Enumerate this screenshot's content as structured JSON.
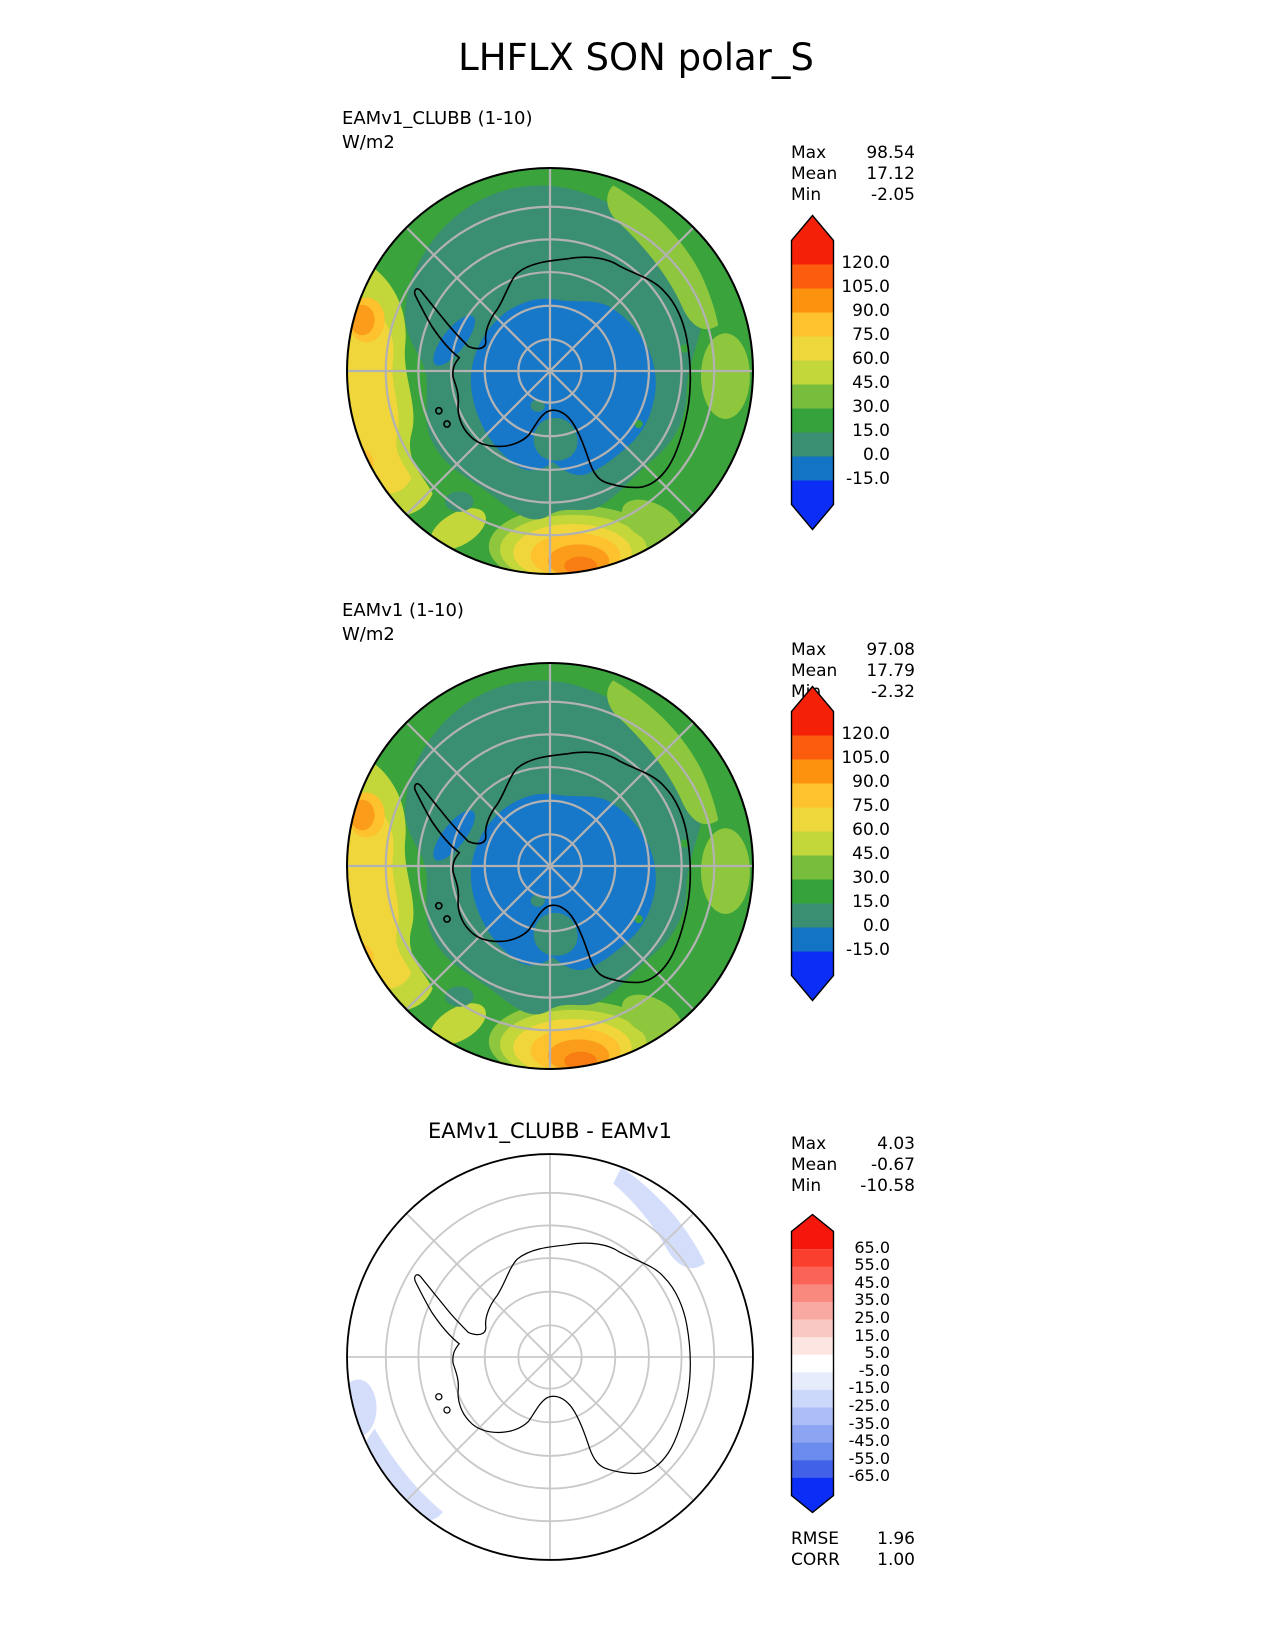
{
  "title": "LHFLX SON polar_S",
  "panels": [
    {
      "label_line1": "EAMv1_CLUBB (1-10)",
      "label_line2": "W/m2",
      "stats": [
        {
          "label": "Max",
          "value": "98.54"
        },
        {
          "label": "Mean",
          "value": "17.12"
        },
        {
          "label": "Min",
          "value": "-2.05"
        }
      ],
      "colorbar": {
        "labels": [
          "120.0",
          "105.0",
          "90.0",
          "75.0",
          "60.0",
          "45.0",
          "30.0",
          "15.0",
          "0.0",
          "-15.0"
        ],
        "colors": [
          "#f52008",
          "#fb5c0d",
          "#fd920e",
          "#fdc22e",
          "#eed73b",
          "#c3d63a",
          "#79bd3c",
          "#35a23c",
          "#3a8e71",
          "#1373c4",
          "#0b2df5"
        ]
      }
    },
    {
      "label_line1": "EAMv1 (1-10)",
      "label_line2": "W/m2",
      "stats": [
        {
          "label": "Max",
          "value": "97.08"
        },
        {
          "label": "Mean",
          "value": "17.79"
        },
        {
          "label": "Min",
          "value": "-2.32"
        }
      ],
      "colorbar": {
        "labels": [
          "120.0",
          "105.0",
          "90.0",
          "75.0",
          "60.0",
          "45.0",
          "30.0",
          "15.0",
          "0.0",
          "-15.0"
        ],
        "colors": [
          "#f52008",
          "#fb5c0d",
          "#fd920e",
          "#fdc22e",
          "#eed73b",
          "#c3d63a",
          "#79bd3c",
          "#35a23c",
          "#3a8e71",
          "#1373c4",
          "#0b2df5"
        ]
      }
    },
    {
      "title": "EAMv1_CLUBB - EAMv1",
      "stats": [
        {
          "label": "Max",
          "value": "4.03"
        },
        {
          "label": "Mean",
          "value": "-0.67"
        },
        {
          "label": "Min",
          "value": "-10.58"
        }
      ],
      "colorbar": {
        "labels": [
          "65.0",
          "55.0",
          "45.0",
          "35.0",
          "25.0",
          "15.0",
          "5.0",
          "-5.0",
          "-15.0",
          "-25.0",
          "-35.0",
          "-45.0",
          "-55.0",
          "-65.0"
        ],
        "colors": [
          "#f5160c",
          "#fa3f2e",
          "#fa6355",
          "#f9887e",
          "#f8aaa2",
          "#fac8c3",
          "#fde5e2",
          "#ffffff",
          "#e7ecfc",
          "#ccd8f9",
          "#acbef6",
          "#8ca4f2",
          "#6b8bee",
          "#4061e8",
          "#0b2df5"
        ]
      },
      "metrics": [
        {
          "label": "RMSE",
          "value": "1.96"
        },
        {
          "label": "CORR",
          "value": "1.00"
        }
      ]
    }
  ],
  "map_colors": {
    "green": "#3aa33c",
    "teal": "#3a8e71",
    "blue": "#1777c9",
    "lightgreen": "#8ec63e",
    "yellowgreen": "#c3d63a",
    "yellow": "#f0d63b",
    "amber": "#fdc22e",
    "orange": "#fb9d1b",
    "deeporange": "#f87d12",
    "diffblue": "#d4defb",
    "graticule": "#b2b2b2",
    "graticule_light": "#c9c9c9",
    "coast": "#000000"
  },
  "chart_data": {
    "type": "heatmap",
    "subtype": "polar_stereographic_filled_contour_maps",
    "figure_title": "LHFLX SON polar_S",
    "variable": "LHFLX",
    "season": "SON",
    "region": "polar_S",
    "units": "W/m2",
    "legend_position": "right-of-each-panel",
    "panels": [
      {
        "name": "EAMv1_CLUBB (1-10)",
        "stats": {
          "max": 98.54,
          "mean": 17.12,
          "min": -2.05
        },
        "contour_levels": [
          -15.0,
          0.0,
          15.0,
          30.0,
          45.0,
          60.0,
          75.0,
          90.0,
          105.0,
          120.0
        ]
      },
      {
        "name": "EAMv1 (1-10)",
        "stats": {
          "max": 97.08,
          "mean": 17.79,
          "min": -2.32
        },
        "contour_levels": [
          -15.0,
          0.0,
          15.0,
          30.0,
          45.0,
          60.0,
          75.0,
          90.0,
          105.0,
          120.0
        ]
      },
      {
        "name": "EAMv1_CLUBB - EAMv1",
        "stats": {
          "max": 4.03,
          "mean": -0.67,
          "min": -10.58
        },
        "metrics": {
          "rmse": 1.96,
          "corr": 1.0
        },
        "contour_levels": [
          -65.0,
          -55.0,
          -45.0,
          -35.0,
          -25.0,
          -15.0,
          -5.0,
          5.0,
          15.0,
          25.0,
          35.0,
          45.0,
          55.0,
          65.0
        ]
      }
    ]
  }
}
